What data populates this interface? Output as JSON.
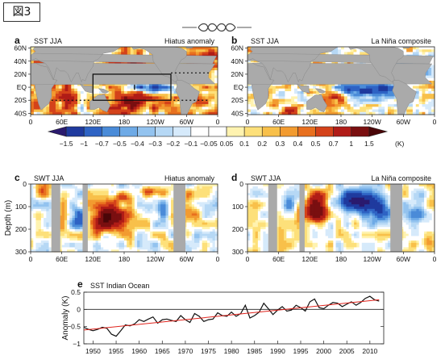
{
  "badge": "図3",
  "panels": {
    "a": {
      "letter": "a",
      "left": "SST  JJA",
      "right": "Hiatus anomaly"
    },
    "b": {
      "letter": "b",
      "left": "SST  JJA",
      "right": "La Niña composite"
    },
    "c": {
      "letter": "c",
      "left": "SWT  JJA",
      "right": "Hiatus anomaly"
    },
    "d": {
      "letter": "d",
      "left": "SWT  JJA",
      "right": "La Niña composite"
    },
    "e": {
      "letter": "e",
      "left": "SST    Indian Ocean"
    }
  },
  "map_yticks": [
    "60N",
    "40N",
    "20N",
    "EQ",
    "20S",
    "40S"
  ],
  "lon_ticks": [
    "0",
    "60E",
    "120E",
    "180",
    "120W",
    "60W",
    "0"
  ],
  "depth_yticks": [
    "0",
    "100",
    "200",
    "300"
  ],
  "depth_ylabel": "Depth (m)",
  "colorbar": {
    "labels": [
      "-1.5",
      "-1",
      "-0.7",
      "-0.5",
      "-0.4",
      "-0.3",
      "-0.2",
      "-0.1",
      "-0.05",
      "0.05",
      "0.1",
      "0.2",
      "0.3",
      "0.4",
      "0.5",
      "0.7",
      "1",
      "1.5"
    ],
    "unit": "(K)",
    "colors": [
      "#2a1a6e",
      "#1f3a9e",
      "#2e63c4",
      "#4a8bd8",
      "#6eaae6",
      "#93c3ef",
      "#b6d8f5",
      "#d6eafb",
      "#ffffff",
      "#ffffff",
      "#fff3b0",
      "#fde07a",
      "#f8c04a",
      "#f29b30",
      "#e8701f",
      "#d4421a",
      "#b01c17",
      "#7a0f10",
      "#4a0608"
    ]
  },
  "chart_data": {
    "type": "line",
    "title": "SST    Indian Ocean",
    "xlabel": "",
    "ylabel": "Anomaly (K)",
    "xlim": [
      1948,
      2013
    ],
    "ylim": [
      -1,
      0.5
    ],
    "xticks": [
      1950,
      1955,
      1960,
      1965,
      1970,
      1975,
      1980,
      1985,
      1990,
      1995,
      2000,
      2005,
      2010
    ],
    "yticks": [
      -1,
      -0.5,
      0,
      0.5
    ],
    "grid": false,
    "series": [
      {
        "color": "#111111",
        "values": [
          [
            1948,
            -0.52
          ],
          [
            1949,
            -0.58
          ],
          [
            1950,
            -0.62
          ],
          [
            1951,
            -0.58
          ],
          [
            1952,
            -0.52
          ],
          [
            1953,
            -0.55
          ],
          [
            1954,
            -0.72
          ],
          [
            1955,
            -0.78
          ],
          [
            1956,
            -0.62
          ],
          [
            1957,
            -0.45
          ],
          [
            1958,
            -0.48
          ],
          [
            1959,
            -0.42
          ],
          [
            1960,
            -0.3
          ],
          [
            1961,
            -0.35
          ],
          [
            1962,
            -0.28
          ],
          [
            1963,
            -0.22
          ],
          [
            1964,
            -0.4
          ],
          [
            1965,
            -0.3
          ],
          [
            1966,
            -0.28
          ],
          [
            1967,
            -0.32
          ],
          [
            1968,
            -0.35
          ],
          [
            1969,
            -0.18
          ],
          [
            1970,
            -0.3
          ],
          [
            1971,
            -0.38
          ],
          [
            1972,
            -0.12
          ],
          [
            1973,
            -0.2
          ],
          [
            1974,
            -0.35
          ],
          [
            1975,
            -0.3
          ],
          [
            1976,
            -0.28
          ],
          [
            1977,
            -0.1
          ],
          [
            1978,
            -0.18
          ],
          [
            1979,
            -0.2
          ],
          [
            1980,
            -0.08
          ],
          [
            1981,
            -0.2
          ],
          [
            1982,
            -0.12
          ],
          [
            1983,
            0.12
          ],
          [
            1984,
            -0.25
          ],
          [
            1985,
            -0.18
          ],
          [
            1986,
            -0.08
          ],
          [
            1987,
            0.18
          ],
          [
            1988,
            0.02
          ],
          [
            1989,
            -0.15
          ],
          [
            1990,
            -0.02
          ],
          [
            1991,
            0.08
          ],
          [
            1992,
            -0.05
          ],
          [
            1993,
            -0.02
          ],
          [
            1994,
            0.12
          ],
          [
            1995,
            0.05
          ],
          [
            1996,
            -0.05
          ],
          [
            1997,
            0.22
          ],
          [
            1998,
            0.3
          ],
          [
            1999,
            0.05
          ],
          [
            2000,
            0.02
          ],
          [
            2001,
            0.12
          ],
          [
            2002,
            0.2
          ],
          [
            2003,
            0.18
          ],
          [
            2004,
            0.08
          ],
          [
            2005,
            0.15
          ],
          [
            2006,
            0.22
          ],
          [
            2007,
            0.12
          ],
          [
            2008,
            0.2
          ],
          [
            2009,
            0.32
          ],
          [
            2010,
            0.38
          ],
          [
            2011,
            0.28
          ],
          [
            2012,
            0.24
          ]
        ]
      },
      {
        "color": "#e0221b",
        "values": [
          [
            1948,
            -0.6
          ],
          [
            2012,
            0.28
          ]
        ]
      }
    ]
  }
}
